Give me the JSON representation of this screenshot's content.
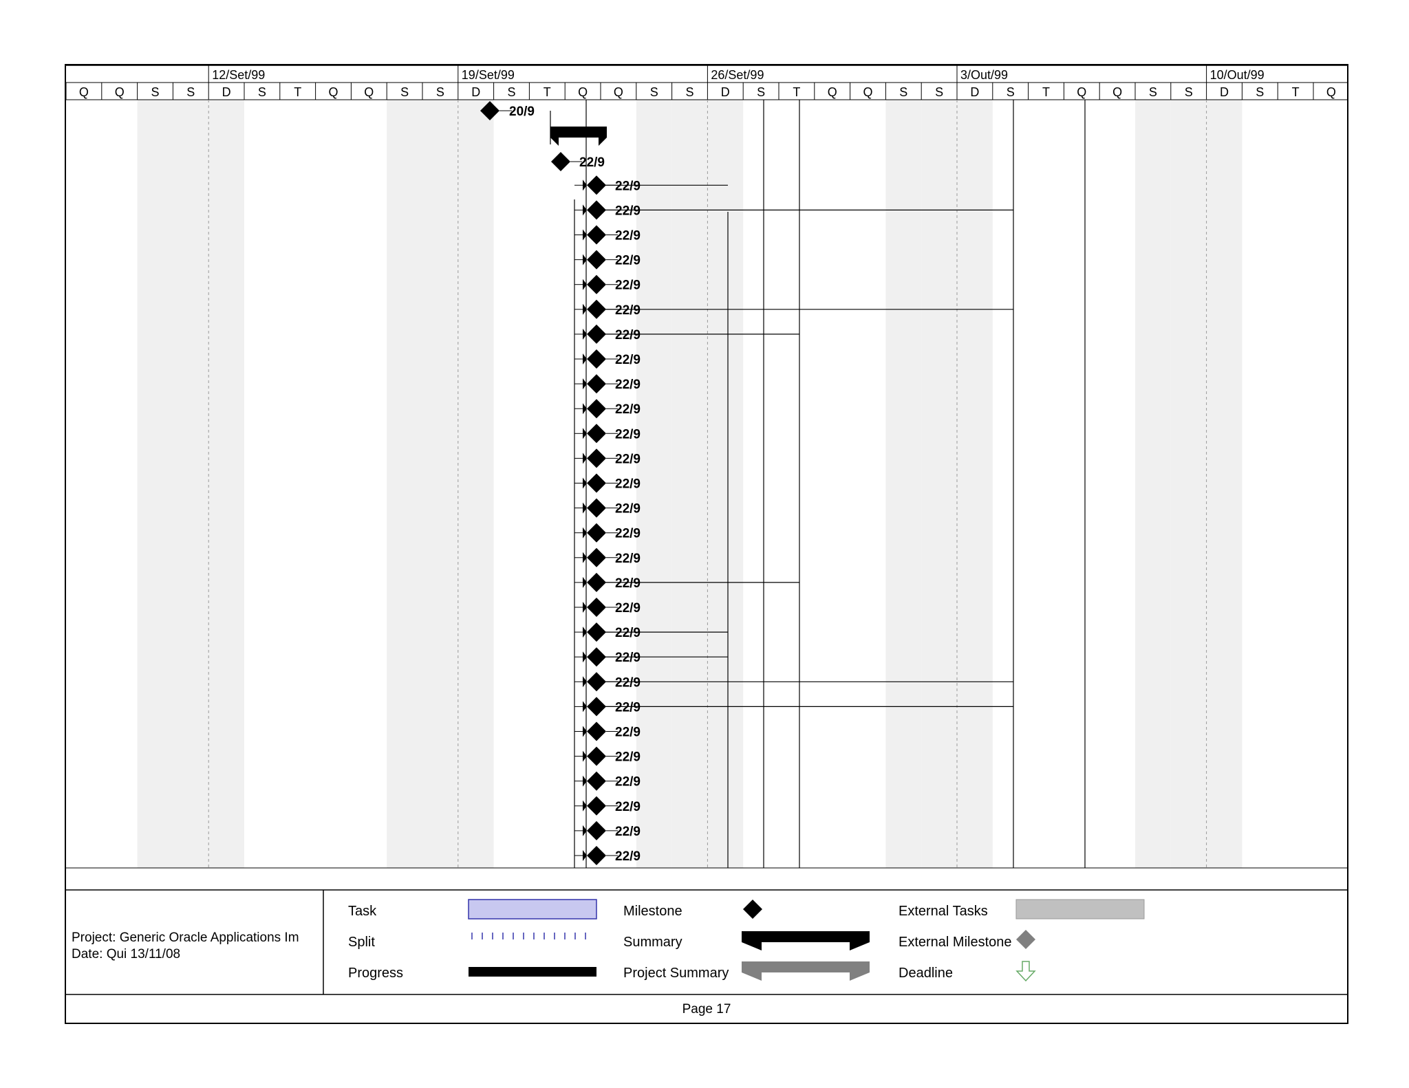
{
  "timescale": {
    "weeks": [
      "12/Set/99",
      "19/Set/99",
      "26/Set/99",
      "3/Out/99",
      "10/Out/99"
    ],
    "days": [
      "Q",
      "Q",
      "S",
      "S",
      "D",
      "S",
      "T",
      "Q",
      "Q",
      "S",
      "S",
      "D",
      "S",
      "T",
      "Q",
      "Q",
      "S",
      "S",
      "D",
      "S",
      "T",
      "Q",
      "Q",
      "S",
      "S",
      "D",
      "S",
      "T",
      "Q",
      "Q",
      "S",
      "S",
      "D",
      "S",
      "T",
      "Q"
    ]
  },
  "milestones": [
    {
      "label": "20/9"
    },
    {
      "label": "22/9"
    },
    {
      "label": "22/9"
    },
    {
      "label": "22/9"
    },
    {
      "label": "22/9"
    },
    {
      "label": "22/9"
    },
    {
      "label": "22/9"
    },
    {
      "label": "22/9"
    },
    {
      "label": "22/9"
    },
    {
      "label": "22/9"
    },
    {
      "label": "22/9"
    },
    {
      "label": "22/9"
    },
    {
      "label": "22/9"
    },
    {
      "label": "22/9"
    },
    {
      "label": "22/9"
    },
    {
      "label": "22/9"
    },
    {
      "label": "22/9"
    },
    {
      "label": "22/9"
    },
    {
      "label": "22/9"
    },
    {
      "label": "22/9"
    },
    {
      "label": "22/9"
    },
    {
      "label": "22/9"
    },
    {
      "label": "22/9"
    },
    {
      "label": "22/9"
    },
    {
      "label": "22/9"
    },
    {
      "label": "22/9"
    },
    {
      "label": "22/9"
    },
    {
      "label": "22/9"
    },
    {
      "label": "22/9"
    },
    {
      "label": "22/9"
    }
  ],
  "legend": {
    "project": "Project: Generic Oracle Applications Im",
    "date": "Date: Qui 13/11/08",
    "task": "Task",
    "split": "Split",
    "progress": "Progress",
    "milestone": "Milestone",
    "summary": "Summary",
    "project_summary": "Project Summary",
    "external_tasks": "External Tasks",
    "external_milestone": "External Milestone",
    "deadline": "Deadline"
  },
  "footer": {
    "page": "Page 17"
  },
  "colors": {
    "weekend_shade": "#f0f0f0",
    "task_fill": "#c8c8f0",
    "task_border": "#3333aa",
    "split_dots": "#3333aa",
    "external": "#c0c0c0",
    "external_milestone": "#808080",
    "project_summary": "#808080",
    "deadline": "#66aa66"
  }
}
